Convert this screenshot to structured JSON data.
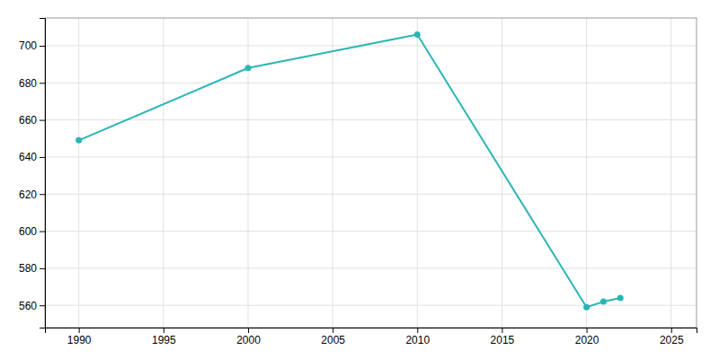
{
  "chart_data": {
    "type": "line",
    "x": [
      1990,
      2000,
      2010,
      2020,
      2021,
      2022
    ],
    "values": [
      649,
      688,
      706,
      559,
      562,
      564
    ],
    "color": "#2ab5b5",
    "marker": "circle",
    "xlim": [
      1988,
      2026.5
    ],
    "ylim": [
      548,
      715
    ],
    "xticks": [
      1990,
      1995,
      2000,
      2005,
      2010,
      2015,
      2020,
      2025
    ],
    "yticks": [
      560,
      580,
      600,
      620,
      640,
      660,
      680,
      700
    ],
    "grid": true
  }
}
